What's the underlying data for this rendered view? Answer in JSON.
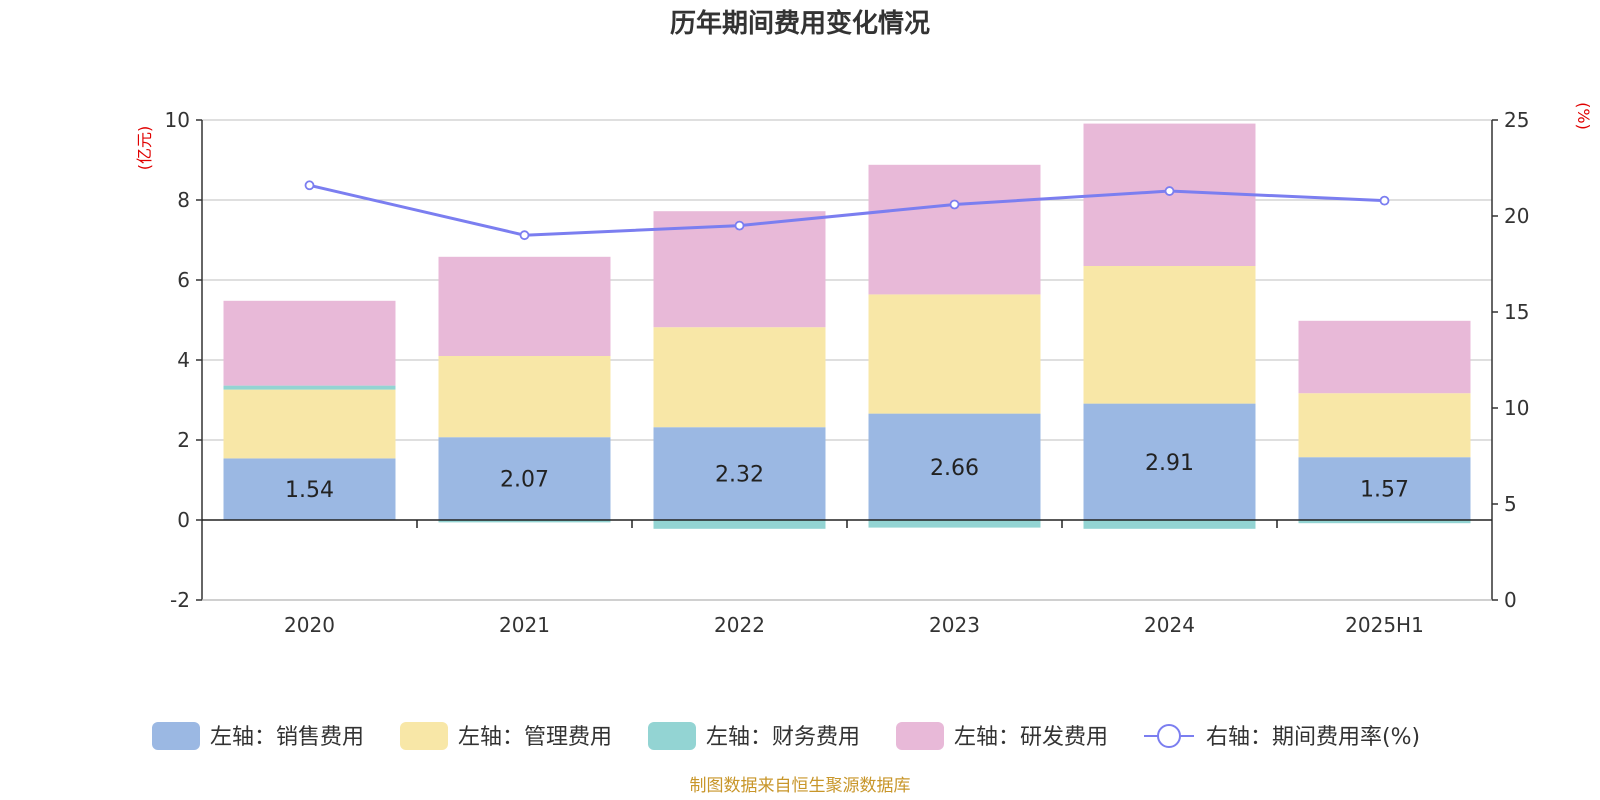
{
  "chart_data": {
    "type": "bar",
    "title": "历年期间费用变化情况",
    "categories": [
      "2020",
      "2021",
      "2022",
      "2023",
      "2024",
      "2025H1"
    ],
    "left_unit": "(亿元)",
    "right_unit": "(%)",
    "ylim_left": [
      -2,
      10
    ],
    "yticks_left": [
      -2,
      0,
      2,
      4,
      6,
      8,
      10
    ],
    "ylim_right": [
      0,
      25
    ],
    "yticks_right": [
      0,
      5,
      10,
      15,
      20,
      25
    ],
    "grid": true,
    "legend_position": "bottom",
    "series": [
      {
        "name": "左轴：销售费用",
        "type": "bar",
        "axis": "left",
        "color": "#9bb8e3",
        "values": [
          1.54,
          2.07,
          2.32,
          2.66,
          2.91,
          1.57
        ],
        "labels": [
          "1.54",
          "2.07",
          "2.32",
          "2.66",
          "2.91",
          "1.57"
        ]
      },
      {
        "name": "左轴：管理费用",
        "type": "bar",
        "axis": "left",
        "color": "#f8e7a7",
        "values": [
          1.72,
          2.03,
          2.5,
          2.98,
          3.44,
          1.6
        ]
      },
      {
        "name": "左轴：财务费用",
        "type": "bar",
        "axis": "left",
        "color": "#93d4d3",
        "values": [
          0.1,
          -0.06,
          -0.22,
          -0.19,
          -0.22,
          -0.08
        ]
      },
      {
        "name": "左轴：研发费用",
        "type": "bar",
        "axis": "left",
        "color": "#e8b9d8",
        "values": [
          2.12,
          2.48,
          2.9,
          3.24,
          3.56,
          1.81
        ]
      },
      {
        "name": "右轴：期间费用率(%)",
        "type": "line",
        "axis": "right",
        "color": "#7b7ef0",
        "values": [
          21.6,
          19.0,
          19.5,
          20.6,
          21.3,
          20.8
        ]
      }
    ]
  },
  "footer": {
    "source": "制图数据来自恒生聚源数据库"
  }
}
